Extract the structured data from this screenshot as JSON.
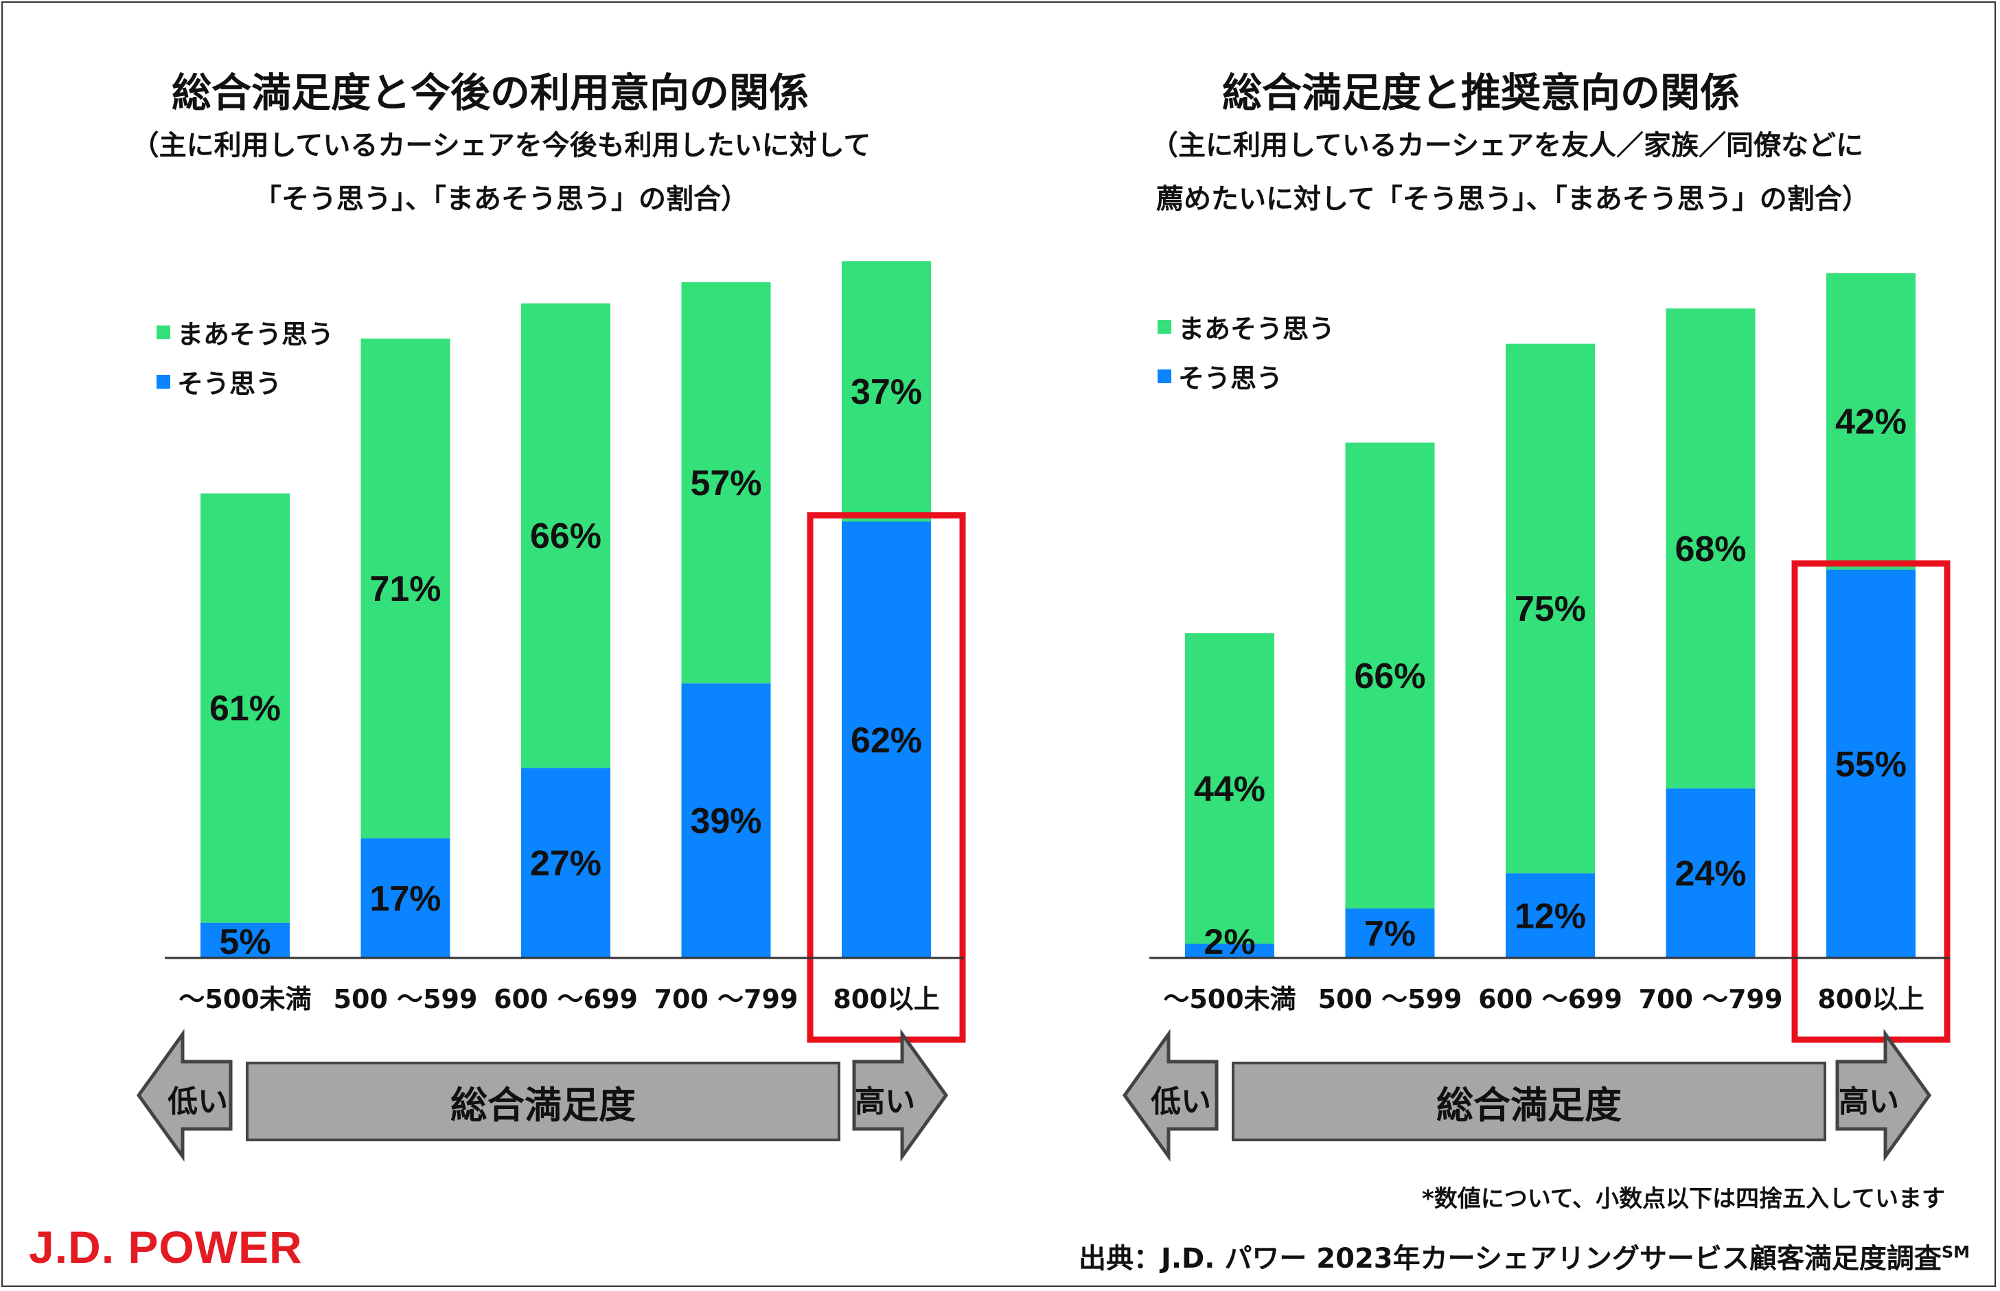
{
  "chart_data": [
    {
      "type": "bar",
      "stacked": true,
      "title": "総合満足度と今後の利用意向の関係",
      "subtitle_lines": [
        "（主に利用しているカーシェアを今後も利用したいに対して",
        "「そう思う」、「まあそう思う」の割合）"
      ],
      "categories": [
        "～500未満",
        "500 ～599",
        "600 ～699",
        "700 ～799",
        "800以上"
      ],
      "series": [
        {
          "name": "そう思う",
          "values": [
            5,
            17,
            27,
            39,
            62
          ],
          "labels": [
            "5%",
            "17%",
            "27%",
            "39%",
            "62%"
          ],
          "color": "#0a84ff"
        },
        {
          "name": "まあそう思う",
          "values": [
            61,
            71,
            66,
            57,
            37
          ],
          "labels": [
            "61%",
            "71%",
            "66%",
            "57%",
            "37%"
          ],
          "color": "#34e07a"
        }
      ],
      "legend": [
        "まあそう思う",
        "そう思う"
      ],
      "highlight_category": "800以上",
      "highlight_color": "#e8101c",
      "ylim": [
        0,
        100
      ]
    },
    {
      "type": "bar",
      "stacked": true,
      "title": "総合満足度と推奨意向の関係",
      "subtitle_lines": [
        "（主に利用しているカーシェアを友人／家族／同僚などに",
        "薦めたいに対して「そう思う」、「まあそう思う」の割合）"
      ],
      "categories": [
        "～500未満",
        "500 ～599",
        "600 ～699",
        "700 ～799",
        "800以上"
      ],
      "series": [
        {
          "name": "そう思う",
          "values": [
            2,
            7,
            12,
            24,
            55
          ],
          "labels": [
            "2%",
            "7%",
            "12%",
            "24%",
            "55%"
          ],
          "color": "#0a84ff"
        },
        {
          "name": "まあそう思う",
          "values": [
            44,
            66,
            75,
            68,
            42
          ],
          "labels": [
            "44%",
            "66%",
            "75%",
            "68%",
            "42%"
          ],
          "color": "#34e07a"
        }
      ],
      "legend": [
        "まあそう思う",
        "そう思う"
      ],
      "highlight_category": "800以上",
      "highlight_color": "#e8101c",
      "ylim": [
        0,
        100
      ]
    }
  ],
  "scale": {
    "low": "低い",
    "label": "総合満足度",
    "high": "高い"
  },
  "footnote": "*数値について、小数点以下は四捨五入しています",
  "source": "出典：J.D. パワー 2023年カーシェアリングサービス顧客満足度調査",
  "source_mark": "SM",
  "logo": "J.D. POWER"
}
